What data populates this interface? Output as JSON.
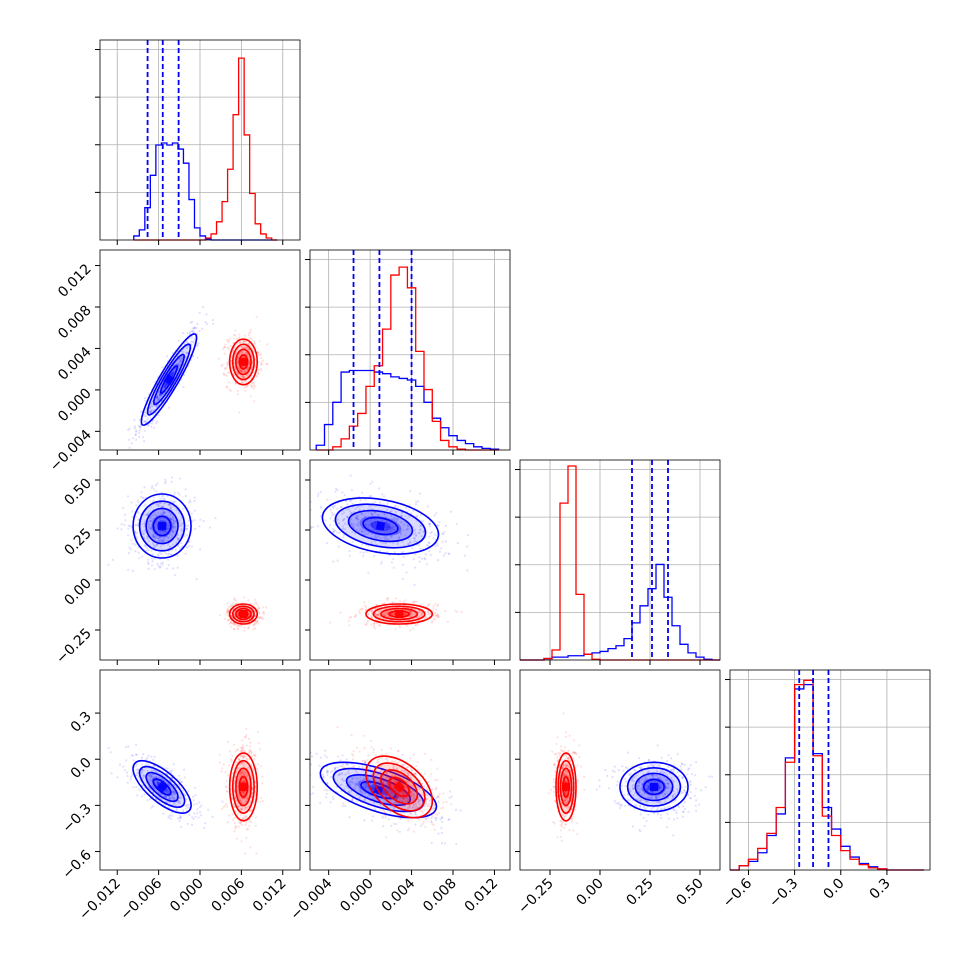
{
  "chart_data": {
    "type": "corner",
    "parameters": 4,
    "colors": {
      "series_a": "#0000ff",
      "series_b": "#ff0000",
      "grid": "#b0b0b0",
      "axis": "#000000"
    },
    "grid": true,
    "marker_lines": {
      "style": "dashed",
      "color": "#0000ff"
    },
    "axes": [
      {
        "range": [
          -0.0145,
          0.0145
        ],
        "ticks": [
          -0.012,
          -0.006,
          0.0,
          0.006,
          0.012
        ],
        "tick_labels": [
          "−0.012",
          "−0.006",
          "0.000",
          "0.006",
          "0.012"
        ]
      },
      {
        "range": [
          -0.0058,
          0.0135
        ],
        "ticks": [
          -0.004,
          0.0,
          0.004,
          0.008,
          0.012
        ],
        "tick_labels": [
          "−0.004",
          "0.000",
          "0.004",
          "0.008",
          "0.012"
        ]
      },
      {
        "range": [
          -0.4,
          0.6
        ],
        "ticks": [
          -0.25,
          0.0,
          0.25,
          0.5
        ],
        "tick_labels": [
          "−0.25",
          "0.00",
          "0.25",
          "0.50"
        ]
      },
      {
        "range": [
          -0.72,
          0.58
        ],
        "ticks": [
          -0.6,
          -0.3,
          0.0,
          0.3
        ],
        "tick_labels": [
          "−0.6",
          "−0.3",
          "0.0",
          "0.3"
        ]
      }
    ],
    "histograms": [
      {
        "param": 0,
        "bins": [
          -0.0096,
          -0.0088,
          -0.008,
          -0.0072,
          -0.0064,
          -0.0056,
          -0.0048,
          -0.004,
          -0.0032,
          -0.0024,
          -0.0016,
          -0.0008,
          0.0,
          0.0008,
          0.0016,
          0.0024,
          0.0032,
          0.004,
          0.0048,
          0.0056,
          0.0064,
          0.0072,
          0.008,
          0.0088,
          0.0096,
          0.0104,
          0.0112
        ],
        "series_a": [
          0.2,
          0.5,
          1.6,
          3.2,
          4.7,
          4.8,
          4.7,
          4.8,
          4.5,
          3.8,
          2.0,
          0.6,
          0.2,
          0.05,
          0,
          0,
          0,
          0,
          0,
          0,
          0,
          0,
          0,
          0,
          0,
          0
        ],
        "series_b": [
          0,
          0,
          0,
          0,
          0,
          0,
          0,
          0,
          0,
          0,
          0,
          0,
          0,
          0.1,
          0.3,
          0.9,
          1.9,
          3.5,
          6.2,
          9.0,
          5.2,
          2.3,
          0.8,
          0.3,
          0.1,
          0
        ],
        "quantiles_a": [
          -0.0076,
          -0.0054,
          -0.0031
        ],
        "ymax": 9.6
      },
      {
        "param": 1,
        "bins": [
          -0.0052,
          -0.0044,
          -0.0036,
          -0.0028,
          -0.002,
          -0.0012,
          -0.0004,
          0.0004,
          0.0012,
          0.002,
          0.0028,
          0.0036,
          0.0044,
          0.0052,
          0.006,
          0.0068,
          0.0076,
          0.0084,
          0.0092,
          0.01,
          0.0108,
          0.0116,
          0.0124
        ],
        "series_a": [
          0.3,
          1.6,
          3.0,
          4.9,
          5.0,
          5.0,
          5.0,
          4.9,
          4.8,
          4.6,
          4.5,
          4.4,
          4.0,
          3.0,
          2.0,
          1.4,
          0.9,
          0.6,
          0.4,
          0.2,
          0.1,
          0.05
        ],
        "series_b": [
          0,
          0,
          0.2,
          0.7,
          1.5,
          2.3,
          4.0,
          5.3,
          7.6,
          11.0,
          11.5,
          10.2,
          6.2,
          3.8,
          1.8,
          0.6,
          0.2,
          0.05,
          0,
          0,
          0,
          0
        ],
        "quantiles_a": [
          -0.0016,
          0.0009,
          0.004
        ],
        "ymax": 12.2
      },
      {
        "param": 2,
        "bins": [
          -0.4,
          -0.36,
          -0.32,
          -0.28,
          -0.24,
          -0.2,
          -0.16,
          -0.12,
          -0.08,
          -0.04,
          0.0,
          0.04,
          0.08,
          0.12,
          0.16,
          0.2,
          0.24,
          0.28,
          0.32,
          0.36,
          0.4,
          0.44,
          0.48,
          0.52,
          0.56,
          0.6
        ],
        "series_a": [
          0,
          0,
          0,
          0.1,
          0.2,
          0.2,
          0.3,
          0.3,
          0.4,
          0.5,
          0.6,
          0.8,
          1.0,
          1.5,
          2.6,
          3.8,
          5.0,
          6.7,
          4.4,
          2.4,
          1.1,
          0.5,
          0.2,
          0.05,
          0
        ],
        "series_b": [
          0,
          0,
          0,
          0.1,
          0.7,
          11.0,
          13.6,
          4.6,
          0.4,
          0.05,
          0,
          0,
          0,
          0,
          0,
          0,
          0,
          0,
          0,
          0,
          0,
          0,
          0,
          0,
          0
        ],
        "quantiles_a": [
          0.16,
          0.26,
          0.34
        ],
        "ymax": 13.6
      },
      {
        "param": 3,
        "bins": [
          -0.72,
          -0.66,
          -0.6,
          -0.54,
          -0.48,
          -0.42,
          -0.36,
          -0.3,
          -0.24,
          -0.18,
          -0.12,
          -0.06,
          0.0,
          0.06,
          0.12,
          0.18,
          0.24,
          0.3,
          0.36,
          0.42,
          0.48,
          0.54
        ],
        "series_a": [
          0,
          0.2,
          0.4,
          0.8,
          1.6,
          2.6,
          5.2,
          8.4,
          8.6,
          5.4,
          2.9,
          1.9,
          1.1,
          0.6,
          0.3,
          0.15,
          0.05,
          0,
          0,
          0,
          0
        ],
        "series_b": [
          0,
          0.2,
          0.5,
          1.0,
          1.7,
          2.9,
          5.0,
          8.6,
          8.8,
          5.3,
          2.5,
          1.6,
          0.9,
          0.5,
          0.25,
          0.1,
          0.05,
          0,
          0,
          0,
          0
        ],
        "quantiles_a": [
          -0.27,
          -0.18,
          -0.08
        ],
        "ymax": 9.0
      }
    ],
    "scatter_panels": [
      {
        "x_param": 0,
        "y_param": 1,
        "series_a": {
          "center": [
            -0.0045,
            0.001
          ],
          "sigma": [
            0.002,
            0.0022
          ],
          "rho": 0.92
        },
        "series_b": {
          "center": [
            0.0063,
            0.0027
          ],
          "sigma": [
            0.001,
            0.0011
          ],
          "rho": 0.0
        }
      },
      {
        "x_param": 0,
        "y_param": 2,
        "series_a": {
          "center": [
            -0.0055,
            0.27
          ],
          "sigma": [
            0.0021,
            0.08
          ],
          "rho": 0.0
        },
        "series_b": {
          "center": [
            0.0063,
            -0.17
          ],
          "sigma": [
            0.001,
            0.025
          ],
          "rho": 0.0
        }
      },
      {
        "x_param": 0,
        "y_param": 3,
        "series_a": {
          "center": [
            -0.0055,
            -0.18
          ],
          "sigma": [
            0.0021,
            0.085
          ],
          "rho": -0.7
        },
        "series_b": {
          "center": [
            0.0063,
            -0.18
          ],
          "sigma": [
            0.001,
            0.11
          ],
          "rho": 0.0
        }
      },
      {
        "x_param": 1,
        "y_param": 2,
        "series_a": {
          "center": [
            0.001,
            0.27
          ],
          "sigma": [
            0.0028,
            0.07
          ],
          "rho": -0.3
        },
        "series_b": {
          "center": [
            0.0028,
            -0.17
          ],
          "sigma": [
            0.0016,
            0.025
          ],
          "rho": 0.0
        }
      },
      {
        "x_param": 1,
        "y_param": 3,
        "series_a": {
          "center": [
            0.0008,
            -0.2
          ],
          "sigma": [
            0.0028,
            0.09
          ],
          "rho": -0.6
        },
        "series_b": {
          "center": [
            0.0028,
            -0.18
          ],
          "sigma": [
            0.0016,
            0.1
          ],
          "rho": -0.45
        }
      },
      {
        "x_param": 2,
        "y_param": 3,
        "series_a": {
          "center": [
            0.27,
            -0.18
          ],
          "sigma": [
            0.085,
            0.08
          ],
          "rho": 0.0
        },
        "series_b": {
          "center": [
            -0.17,
            -0.18
          ],
          "sigma": [
            0.025,
            0.11
          ],
          "rho": 0.0
        }
      }
    ]
  }
}
